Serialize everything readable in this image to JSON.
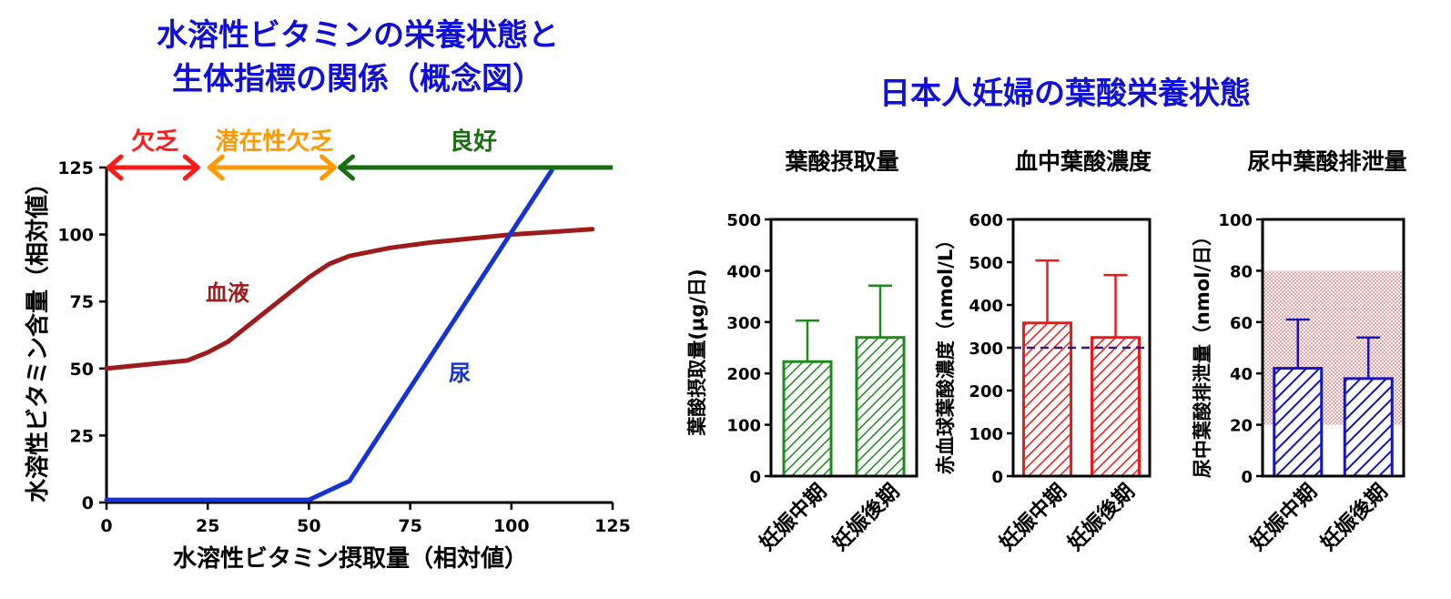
{
  "left_title": [
    "水溶性ビタミンの栄養状態と",
    "生体指標の関係（概念図）"
  ],
  "right_title": "日本人妊婦の葉酸栄養状態",
  "colors": {
    "title": "#1010d8",
    "red": "#ff1a1a",
    "orange": "#ff9900",
    "green": "#1a6e12",
    "blood": "#9e1b1b",
    "urine": "#1533d6",
    "bar_green": "#1e8a1e",
    "bar_red": "#f01818",
    "bar_blue": "#1414c0",
    "ref_line": "#3a1a6e",
    "ref_band": "#f4a0a0"
  },
  "chart_data": [
    {
      "type": "line",
      "title": "",
      "xlabel": "水溶性ビタミン摂取量（相対値）",
      "ylabel": "水溶性ビタミン含量（相対値）",
      "xlim": [
        0,
        125
      ],
      "ylim": [
        0,
        125
      ],
      "xticks": [
        "0",
        "25",
        "50",
        "75",
        "100",
        "125"
      ],
      "yticks": [
        "0",
        "25",
        "50",
        "75",
        "100",
        "125"
      ],
      "series": [
        {
          "name": "血液",
          "color": "blood",
          "x": [
            0,
            10,
            20,
            25,
            30,
            40,
            50,
            55,
            60,
            70,
            80,
            90,
            100,
            110,
            120
          ],
          "y": [
            50,
            51.5,
            53,
            56,
            60,
            72,
            84,
            89,
            92,
            95,
            97,
            98.5,
            100,
            101,
            102
          ]
        },
        {
          "name": "尿",
          "color": "urine",
          "x": [
            0,
            50,
            60,
            110
          ],
          "y": [
            1,
            1,
            8,
            124
          ]
        }
      ],
      "status_labels": [
        {
          "text": "欠乏",
          "color": "red",
          "x_from": 0,
          "x_to": 23
        },
        {
          "text": "潜在性欠乏",
          "color": "orange",
          "x_from": 25,
          "x_to": 57
        },
        {
          "text": "良好",
          "color": "green",
          "x_from": 57,
          "x_to": 125
        }
      ]
    },
    {
      "type": "bar",
      "title": "葉酸摂取量",
      "ylabel": "葉酸摂取量(µg/日)",
      "categories": [
        "妊娠中期",
        "妊娠後期"
      ],
      "values": [
        223,
        270
      ],
      "errors": [
        303,
        371
      ],
      "ylim": [
        0,
        500
      ],
      "yticks": [
        "0",
        "100",
        "200",
        "300",
        "400",
        "500"
      ],
      "color": "bar_green"
    },
    {
      "type": "bar",
      "title": "血中葉酸濃度",
      "ylabel": "赤血球葉酸濃度（nmol/L）",
      "categories": [
        "妊娠中期",
        "妊娠後期"
      ],
      "values": [
        358,
        324
      ],
      "errors": [
        504,
        470
      ],
      "ylim": [
        0,
        600
      ],
      "yticks": [
        "0",
        "100",
        "200",
        "300",
        "400",
        "500",
        "600"
      ],
      "reference_line": 300,
      "color": "bar_red"
    },
    {
      "type": "bar",
      "title": "尿中葉酸排泄量",
      "ylabel": "尿中葉酸排泄量（nmol/日）",
      "categories": [
        "妊娠中期",
        "妊娠後期"
      ],
      "values": [
        42,
        38
      ],
      "errors": [
        61,
        54
      ],
      "ylim": [
        0,
        100
      ],
      "yticks": [
        "0",
        "20",
        "40",
        "60",
        "80",
        "100"
      ],
      "reference_band": [
        20,
        80
      ],
      "color": "bar_blue"
    }
  ]
}
